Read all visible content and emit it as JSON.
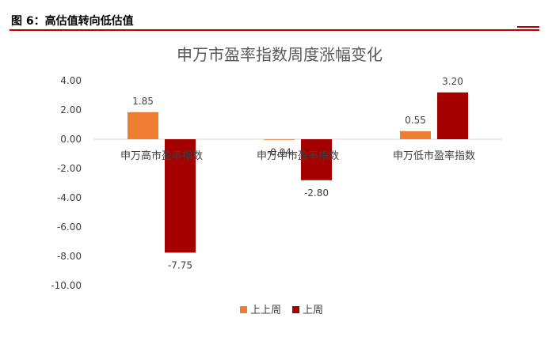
{
  "figure_caption": "图 6：高估值转向低估值",
  "colors": {
    "series_prev": "#ED7D31",
    "series_last": "#A50000",
    "rule": "#C00000"
  },
  "chart_data": {
    "type": "bar",
    "title": "申万市盈率指数周度涨幅变化",
    "categories": [
      "申万高市盈率指数",
      "申万中市盈率指数",
      "申万低市盈率指数"
    ],
    "series": [
      {
        "name": "上上周",
        "values": [
          1.85,
          -0.04,
          0.55
        ],
        "labels": [
          "1.85",
          "-0.04",
          "0.55"
        ]
      },
      {
        "name": "上周",
        "values": [
          -7.75,
          -2.8,
          3.2
        ],
        "labels": [
          "-7.75",
          "-2.80",
          "3.20"
        ]
      }
    ],
    "ylim": [
      -10,
      4
    ],
    "yticks": [
      "4.00",
      "2.00",
      "0.00",
      "-2.00",
      "-4.00",
      "-6.00",
      "-8.00",
      "-10.00"
    ],
    "xlabel": "",
    "ylabel": "",
    "legend_position": "bottom",
    "grid": false
  }
}
